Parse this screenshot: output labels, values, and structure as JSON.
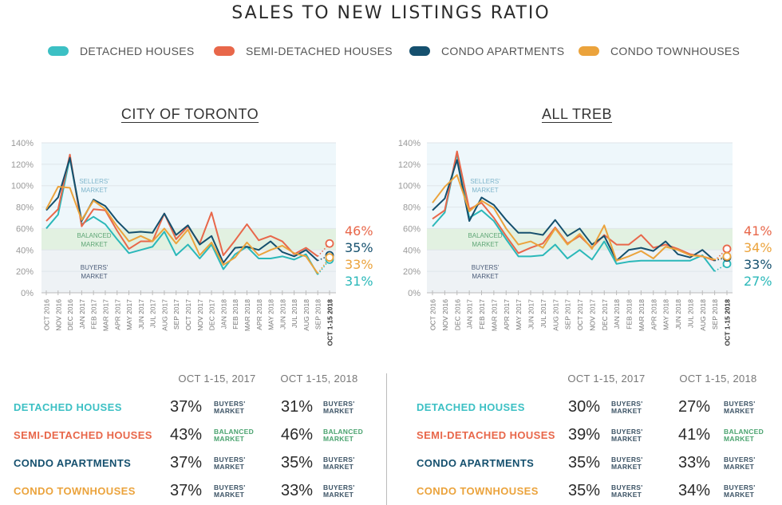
{
  "title": "SALES TO NEW LISTINGS RATIO",
  "legend": [
    {
      "label": "DETACHED HOUSES",
      "color": "#3cc0c4"
    },
    {
      "label": "SEMI-DETACHED HOUSES",
      "color": "#e8674a"
    },
    {
      "label": "CONDO APARTMENTS",
      "color": "#15506e"
    },
    {
      "label": "CONDO TOWNHOUSES",
      "color": "#eba33c"
    }
  ],
  "zones": {
    "sellers": "SELLERS' MARKET",
    "balanced": "BALANCED MARKET",
    "buyers": "BUYERS' MARKET"
  },
  "zone_colors": {
    "sellers": "#eef7fb",
    "balanced": "#e2f1e1",
    "buyers": "#eef2f5"
  },
  "chart_data": [
    {
      "type": "line",
      "title": "CITY OF TORONTO",
      "categories": [
        "OCT 2016",
        "NOV 2016",
        "DEC 2016",
        "JAN 2017",
        "FEB 2017",
        "MAR 2017",
        "APR 2017",
        "MAY 2017",
        "JUN 2017",
        "JUL 2017",
        "AUG 2017",
        "SEP 2017",
        "OCT 2017",
        "NOV 2017",
        "DEC 2017",
        "JAN 2018",
        "FEB 2018",
        "MAR 2018",
        "APR 2018",
        "MAY 2018",
        "JUN 2018",
        "JUL 2018",
        "AUG 2018",
        "SEP 2018",
        "OCT 1-15 2018"
      ],
      "yticks": [
        "0%",
        "20%",
        "40%",
        "60%",
        "80%",
        "100%",
        "120%",
        "140%"
      ],
      "ylim": [
        0,
        140
      ],
      "series": [
        {
          "name": "DETACHED HOUSES",
          "color": "#2bb8b9",
          "values": [
            60,
            73,
            126,
            64,
            71,
            64,
            50,
            37,
            40,
            43,
            57,
            35,
            45,
            32,
            45,
            22,
            36,
            43,
            32,
            32,
            34,
            31,
            36,
            17,
            31
          ]
        },
        {
          "name": "SEMI-DETACHED HOUSES",
          "color": "#e8674a",
          "values": [
            67,
            78,
            129,
            62,
            78,
            77,
            58,
            41,
            48,
            48,
            74,
            50,
            62,
            46,
            75,
            35,
            49,
            64,
            49,
            53,
            48,
            36,
            42,
            34,
            46
          ]
        },
        {
          "name": "CONDO APARTMENTS",
          "color": "#15506e",
          "values": [
            77,
            89,
            126,
            67,
            87,
            81,
            67,
            56,
            57,
            56,
            74,
            54,
            63,
            45,
            53,
            28,
            42,
            43,
            40,
            48,
            38,
            34,
            40,
            30,
            35
          ]
        },
        {
          "name": "CONDO TOWNHOUSES",
          "color": "#eba33c",
          "values": [
            78,
            99,
            98,
            68,
            86,
            78,
            62,
            48,
            53,
            48,
            60,
            46,
            59,
            35,
            47,
            26,
            33,
            47,
            35,
            40,
            44,
            37,
            34,
            18,
            33
          ]
        }
      ],
      "end_labels": [
        {
          "text": "46%",
          "color": "#e8674a"
        },
        {
          "text": "35%",
          "color": "#15506e"
        },
        {
          "text": "33%",
          "color": "#eba33c"
        },
        {
          "text": "31%",
          "color": "#2bb8b9"
        }
      ]
    },
    {
      "type": "line",
      "title": "ALL TREB",
      "categories": [
        "OCT 2016",
        "NOV 2016",
        "DEC 2016",
        "JAN 2017",
        "FEB 2017",
        "MAR 2017",
        "APR 2017",
        "MAY 2017",
        "JUN 2017",
        "JUL 2017",
        "AUG 2017",
        "SEP 2017",
        "OCT 2017",
        "NOV 2017",
        "DEC 2017",
        "JAN 2018",
        "FEB 2018",
        "MAR 2018",
        "APR 2018",
        "MAY 2018",
        "JUN 2018",
        "JUL 2018",
        "AUG 2018",
        "SEP 2018",
        "OCT 1-15 2018"
      ],
      "yticks": [
        "0%",
        "20%",
        "40%",
        "60%",
        "80%",
        "100%",
        "120%",
        "140%"
      ],
      "ylim": [
        0,
        140
      ],
      "series": [
        {
          "name": "DETACHED HOUSES",
          "color": "#2bb8b9",
          "values": [
            62,
            75,
            130,
            70,
            77,
            67,
            50,
            34,
            34,
            35,
            45,
            32,
            40,
            31,
            48,
            27,
            29,
            30,
            30,
            30,
            30,
            30,
            35,
            20,
            27
          ]
        },
        {
          "name": "SEMI-DETACHED HOUSES",
          "color": "#e8674a",
          "values": [
            69,
            77,
            132,
            78,
            84,
            70,
            53,
            37,
            42,
            46,
            61,
            46,
            53,
            42,
            54,
            45,
            45,
            54,
            42,
            45,
            41,
            36,
            34,
            30,
            41
          ]
        },
        {
          "name": "CONDO APARTMENTS",
          "color": "#15506e",
          "values": [
            77,
            88,
            124,
            67,
            89,
            82,
            68,
            56,
            56,
            54,
            68,
            53,
            60,
            45,
            53,
            30,
            40,
            42,
            39,
            48,
            36,
            33,
            40,
            30,
            33
          ]
        },
        {
          "name": "CONDO TOWNHOUSES",
          "color": "#eba33c",
          "values": [
            84,
            99,
            110,
            76,
            86,
            79,
            60,
            45,
            48,
            42,
            60,
            45,
            55,
            41,
            63,
            30,
            34,
            39,
            32,
            43,
            40,
            35,
            34,
            31,
            34
          ]
        }
      ],
      "end_labels": [
        {
          "text": "41%",
          "color": "#e8674a"
        },
        {
          "text": "34%",
          "color": "#eba33c"
        },
        {
          "text": "33%",
          "color": "#15506e"
        },
        {
          "text": "27%",
          "color": "#2bb8b9"
        }
      ]
    }
  ],
  "tables": [
    {
      "headers": [
        "OCT 1-15, 2017",
        "OCT 1-15, 2018"
      ],
      "rows": [
        {
          "label": "DETACHED HOUSES",
          "color": "#3cc0c4",
          "v2017": "37%",
          "m2017": "BUYERS' MARKET",
          "v2018": "31%",
          "m2018": "BUYERS' MARKET"
        },
        {
          "label": "SEMI-DETACHED HOUSES",
          "color": "#e8674a",
          "v2017": "43%",
          "m2017": "BALANCED MARKET",
          "v2018": "46%",
          "m2018": "BALANCED MARKET"
        },
        {
          "label": "CONDO APARTMENTS",
          "color": "#15506e",
          "v2017": "37%",
          "m2017": "BUYERS' MARKET",
          "v2018": "35%",
          "m2018": "BUYERS' MARKET"
        },
        {
          "label": "CONDO TOWNHOUSES",
          "color": "#eba33c",
          "v2017": "37%",
          "m2017": "BUYERS' MARKET",
          "v2018": "33%",
          "m2018": "BUYERS' MARKET"
        }
      ]
    },
    {
      "headers": [
        "OCT 1-15, 2017",
        "OCT 1-15, 2018"
      ],
      "rows": [
        {
          "label": "DETACHED HOUSES",
          "color": "#3cc0c4",
          "v2017": "30%",
          "m2017": "BUYERS' MARKET",
          "v2018": "27%",
          "m2018": "BUYERS' MARKET"
        },
        {
          "label": "SEMI-DETACHED HOUSES",
          "color": "#e8674a",
          "v2017": "39%",
          "m2017": "BUYERS' MARKET",
          "v2018": "41%",
          "m2018": "BALANCED MARKET"
        },
        {
          "label": "CONDO APARTMENTS",
          "color": "#15506e",
          "v2017": "35%",
          "m2017": "BUYERS' MARKET",
          "v2018": "33%",
          "m2018": "BUYERS' MARKET"
        },
        {
          "label": "CONDO TOWNHOUSES",
          "color": "#eba33c",
          "v2017": "35%",
          "m2017": "BUYERS' MARKET",
          "v2018": "34%",
          "m2018": "BUYERS' MARKET"
        }
      ]
    }
  ],
  "market_colors": {
    "buyers": "#3d5466",
    "balanced": "#4aa36f"
  }
}
